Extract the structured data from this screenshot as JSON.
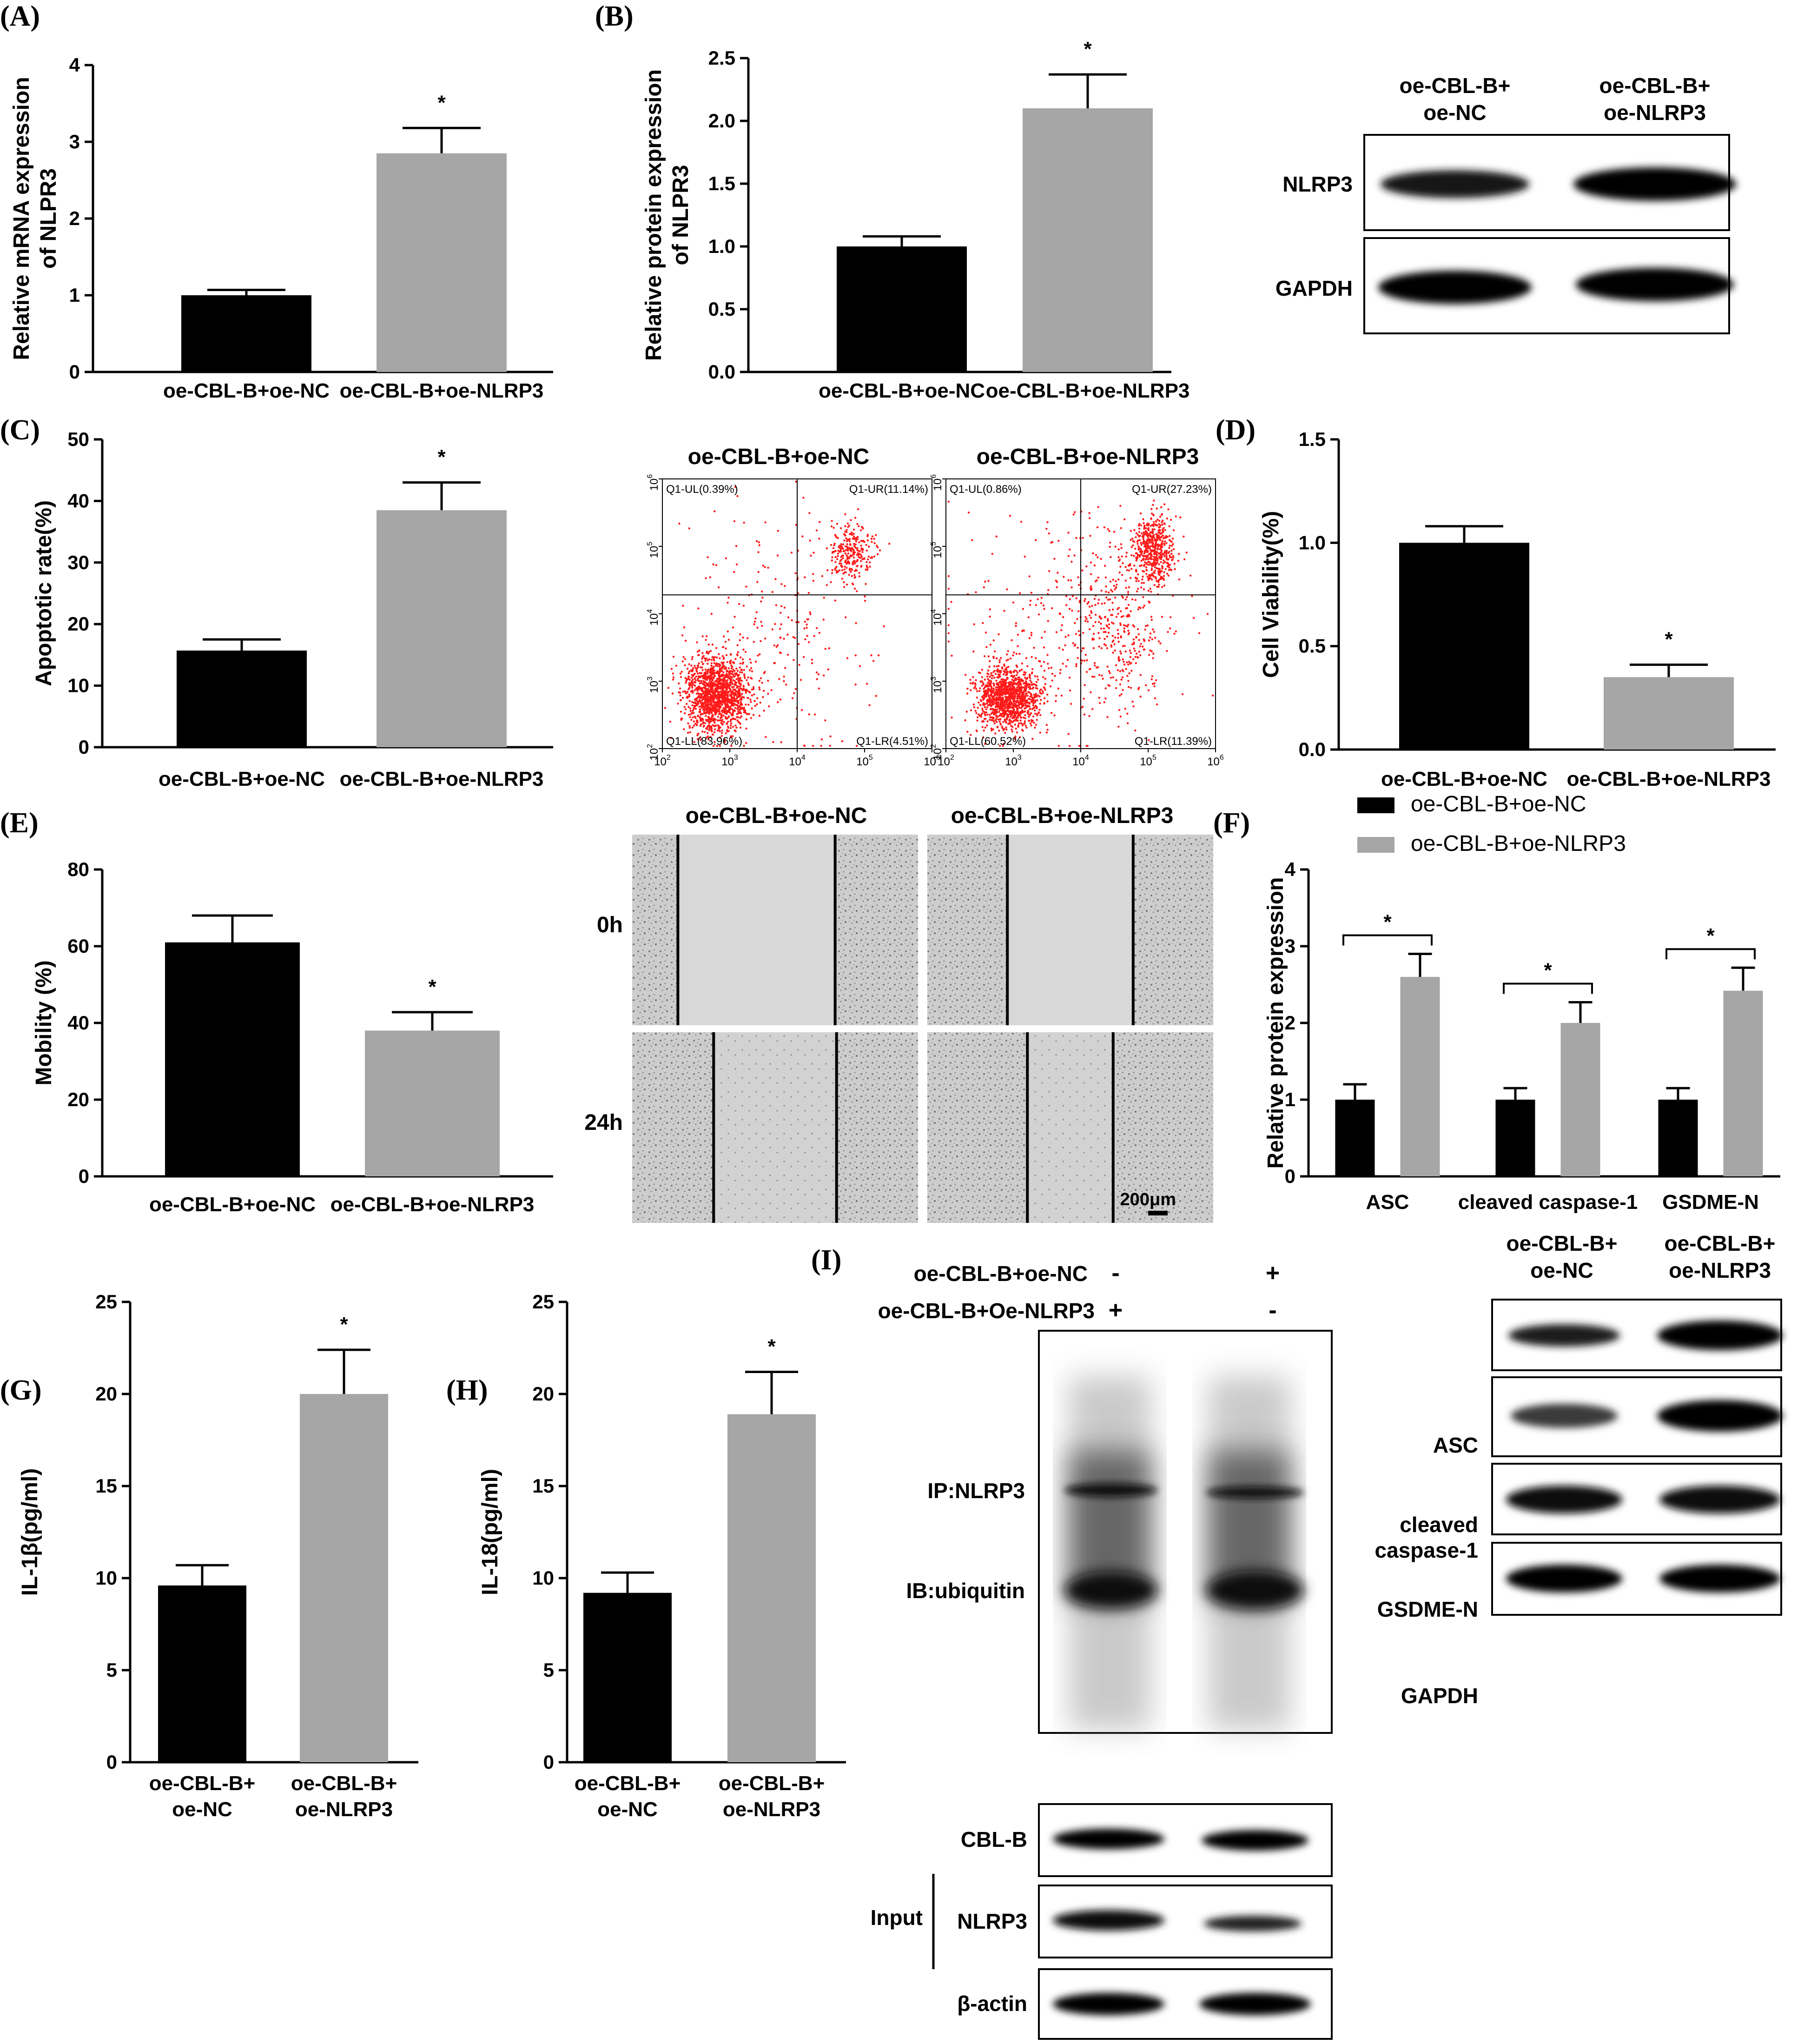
{
  "colors": {
    "ctrl": "#000000",
    "treat": "#a6a6a6",
    "dots": "#ff1a1a",
    "bg": "#ffffff"
  },
  "chart_data": [
    {
      "id": "A",
      "type": "bar",
      "panel_label": "(A)",
      "categories": [
        "oe-CBL-B+oe-NC",
        "oe-CBL-B+oe-NLRP3"
      ],
      "values": [
        1.0,
        2.85
      ],
      "errors": [
        0.07,
        0.33
      ],
      "sig": [
        "",
        "*"
      ],
      "ylabel": [
        "Relative mRNA expression",
        "of NLPR3"
      ],
      "ylim": [
        0,
        4
      ],
      "yticks": [
        "0",
        "1",
        "2",
        "3",
        "4"
      ],
      "grid": false
    },
    {
      "id": "B",
      "type": "bar",
      "panel_label": "(B)",
      "categories": [
        "oe-CBL-B+oe-NC",
        "oe-CBL-B+oe-NLRP3"
      ],
      "values": [
        1.0,
        2.1
      ],
      "errors": [
        0.08,
        0.27
      ],
      "sig": [
        "",
        "*"
      ],
      "ylabel": [
        "Relative protein expression",
        "of NLPR3"
      ],
      "ylim": [
        0,
        2.5
      ],
      "yticks": [
        "0.0",
        "0.5",
        "1.0",
        "1.5",
        "2.0",
        "2.5"
      ],
      "grid": false
    },
    {
      "id": "C",
      "type": "bar",
      "panel_label": "(C)",
      "categories": [
        "oe-CBL-B+oe-NC",
        "oe-CBL-B+oe-NLRP3"
      ],
      "values": [
        15.7,
        38.5
      ],
      "errors": [
        1.8,
        4.5
      ],
      "sig": [
        "",
        "*"
      ],
      "ylabel": [
        "Apoptotic rate(%)"
      ],
      "ylim": [
        0,
        50
      ],
      "yticks": [
        "0",
        "10",
        "20",
        "30",
        "40",
        "50"
      ],
      "grid": false
    },
    {
      "id": "D",
      "type": "bar",
      "panel_label": "(D)",
      "categories": [
        "oe-CBL-B+oe-NC",
        "oe-CBL-B+oe-NLRP3"
      ],
      "values": [
        1.0,
        0.35
      ],
      "errors": [
        0.08,
        0.06
      ],
      "sig": [
        "",
        "*"
      ],
      "ylabel": [
        "Cell Viability(%)"
      ],
      "ylim": [
        0,
        1.5
      ],
      "yticks": [
        "0.0",
        "0.5",
        "1.0",
        "1.5"
      ],
      "grid": false
    },
    {
      "id": "E",
      "type": "bar",
      "panel_label": "(E)",
      "categories": [
        "oe-CBL-B+oe-NC",
        "oe-CBL-B+oe-NLRP3"
      ],
      "values": [
        61,
        38
      ],
      "errors": [
        7,
        4.8
      ],
      "sig": [
        "",
        "*"
      ],
      "ylabel": [
        "Mobility (%)"
      ],
      "ylim": [
        0,
        80
      ],
      "yticks": [
        "0",
        "20",
        "40",
        "60",
        "80"
      ],
      "grid": false
    },
    {
      "id": "F",
      "type": "bar",
      "panel_label": "(F)",
      "categories": [
        "ASC",
        "cleaved caspase-1",
        "GSDME-N"
      ],
      "series": [
        {
          "name": "oe-CBL-B+oe-NC",
          "values": [
            1.0,
            1.0,
            1.0
          ],
          "errors": [
            0.2,
            0.15,
            0.15
          ]
        },
        {
          "name": "oe-CBL-B+oe-NLRP3",
          "values": [
            2.6,
            2.0,
            2.42
          ],
          "errors": [
            0.3,
            0.27,
            0.3
          ]
        }
      ],
      "sig": [
        "*",
        "*",
        "*"
      ],
      "ylabel": [
        "Relative protein expression"
      ],
      "ylim": [
        0,
        4
      ],
      "yticks": [
        "0",
        "1",
        "2",
        "3",
        "4"
      ],
      "legend": "top",
      "grid": false
    },
    {
      "id": "G",
      "type": "bar",
      "panel_label": "(G)",
      "categories": [
        [
          "oe-CBL-B+",
          "oe-NC"
        ],
        [
          "oe-CBL-B+",
          "oe-NLRP3"
        ]
      ],
      "values": [
        9.6,
        20.0
      ],
      "errors": [
        1.1,
        2.4
      ],
      "sig": [
        "",
        "*"
      ],
      "ylabel": [
        "IL-1β(pg/ml)"
      ],
      "ylim": [
        0,
        25
      ],
      "yticks": [
        "0",
        "5",
        "10",
        "15",
        "20",
        "25"
      ],
      "grid": false
    },
    {
      "id": "H",
      "type": "bar",
      "panel_label": "(H)",
      "categories": [
        [
          "oe-CBL-B+",
          "oe-NC"
        ],
        [
          "oe-CBL-B+",
          "oe-NLRP3"
        ]
      ],
      "values": [
        9.2,
        18.9
      ],
      "errors": [
        1.1,
        2.3
      ],
      "sig": [
        "",
        "*"
      ],
      "ylabel": [
        "IL-18(pg/ml)"
      ],
      "ylim": [
        0,
        25
      ],
      "yticks": [
        "0",
        "5",
        "10",
        "15",
        "20",
        "25"
      ],
      "grid": false
    }
  ],
  "flow": {
    "titles": [
      "oe-CBL-B+oe-NC",
      "oe-CBL-B+oe-NLRP3"
    ],
    "tick_base": "10",
    "tick_exps": [
      "2",
      "3",
      "4",
      "5",
      "6"
    ],
    "quadrants": [
      [
        "Q1-UL(0.39%)",
        "Q1-UR(11.14%)",
        "Q1-LL(83.96%)",
        "Q1-LR(4.51%)"
      ],
      [
        "Q1-UL(0.86%)",
        "Q1-UR(27.23%)",
        "Q1-LL(60.52%)",
        "Q1-LR(11.39%)"
      ]
    ]
  },
  "wound": {
    "titles": [
      "oe-CBL-B+oe-NC",
      "oe-CBL-B+oe-NLRP3"
    ],
    "rows": [
      "0h",
      "24h"
    ],
    "gap_fraction": [
      0.55,
      0.44,
      0.43,
      0.3
    ],
    "scalebar": "200μm"
  },
  "blot_B": {
    "headers": [
      [
        "oe-CBL-B+",
        "oe-NC"
      ],
      [
        "oe-CBL-B+",
        "oe-NLRP3"
      ]
    ],
    "rows": [
      "NLRP3",
      "GAPDH"
    ]
  },
  "blot_F": {
    "headers": [
      [
        "oe-CBL-B+",
        "oe-NC"
      ],
      [
        "oe-CBL-B+",
        "oe-NLRP3"
      ]
    ],
    "rows": [
      [
        "ASC"
      ],
      [
        "cleaved",
        "caspase-1"
      ],
      [
        "GSDME-N"
      ],
      [
        "GAPDH"
      ]
    ]
  },
  "panel_I": {
    "label": "(I)",
    "conditions": [
      {
        "name": "oe-CBL-B+oe-NC",
        "lanes": [
          "-",
          "+"
        ]
      },
      {
        "name": "oe-CBL-B+Oe-NLRP3",
        "lanes": [
          "+",
          "-"
        ]
      }
    ],
    "ip_labels": [
      "IP:NLRP3",
      "IB:ubiquitin"
    ],
    "input_label": "Input",
    "input_rows": [
      "CBL-B",
      "NLRP3",
      "β-actin"
    ]
  }
}
